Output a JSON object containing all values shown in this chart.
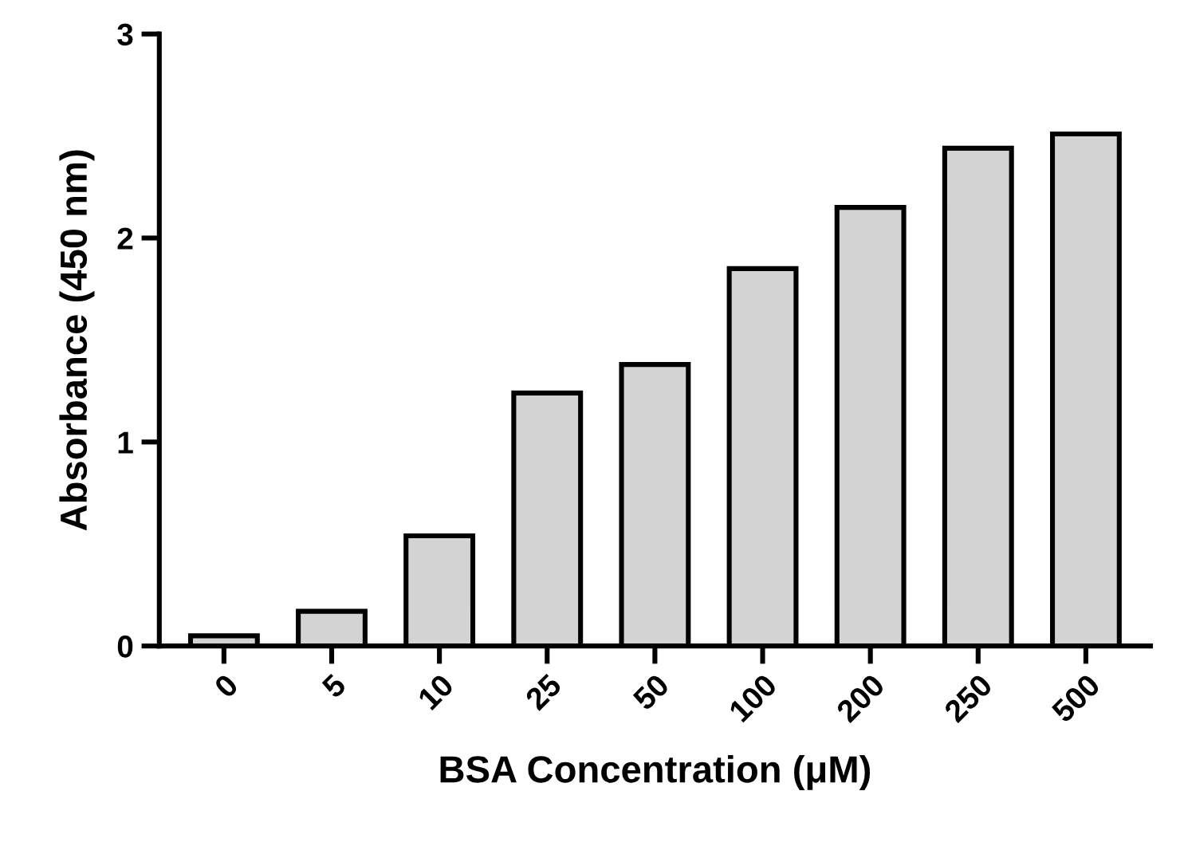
{
  "chart_data": {
    "type": "bar",
    "xlabel": "BSA Concentration (μM)",
    "ylabel": "Absorbance (450 nm)",
    "categories": [
      "0",
      "5",
      "10",
      "25",
      "50",
      "100",
      "200",
      "250",
      "500"
    ],
    "values": [
      0.05,
      0.17,
      0.54,
      1.24,
      1.38,
      1.85,
      2.15,
      2.44,
      2.51
    ],
    "color": "#d3d3d3",
    "ylim": [
      0,
      3
    ],
    "yticks": [
      0,
      1,
      2,
      3
    ],
    "grid": false
  }
}
